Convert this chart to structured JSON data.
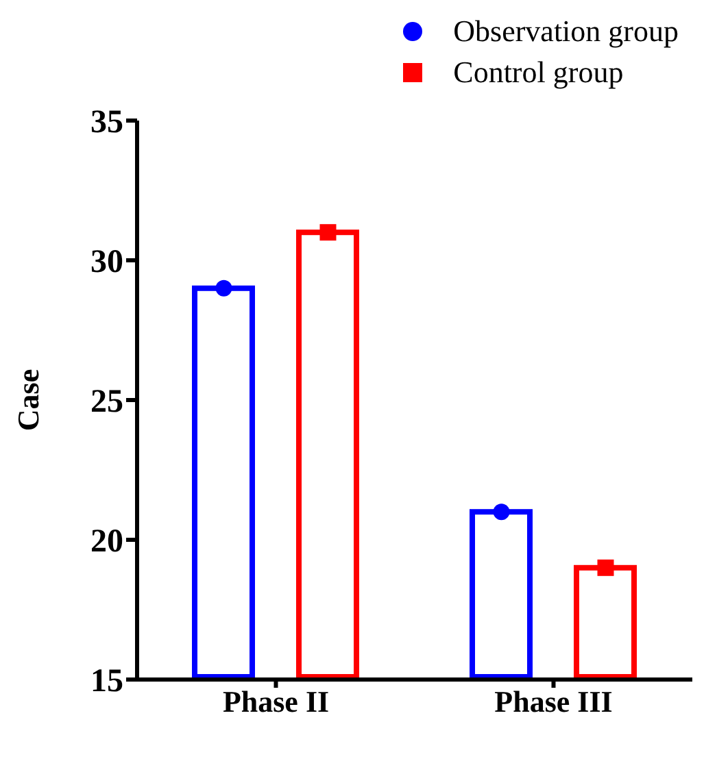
{
  "chart_data": {
    "type": "bar",
    "ylabel": "Case",
    "categories": [
      "Phase II",
      "Phase III"
    ],
    "series": [
      {
        "name": "Observation group",
        "color": "#0000ff",
        "marker": "circle",
        "values": [
          29,
          21
        ]
      },
      {
        "name": "Control group",
        "color": "#ff0000",
        "marker": "square",
        "values": [
          31,
          19
        ]
      },
      {
        "type": "scatter",
        "color": "#0000ff",
        "marker": "circle",
        "x": [
          "Phase II",
          "Phase III"
        ],
        "values": [
          29,
          21
        ]
      },
      {
        "type": "scatter",
        "color": "#ff0000",
        "marker": "square",
        "x": [
          "Phase II",
          "Phase III"
        ],
        "values": [
          31,
          19
        ]
      }
    ],
    "ylim": [
      15,
      35
    ],
    "yticks": [
      15,
      20,
      25,
      30,
      35
    ],
    "legend": "top right"
  }
}
